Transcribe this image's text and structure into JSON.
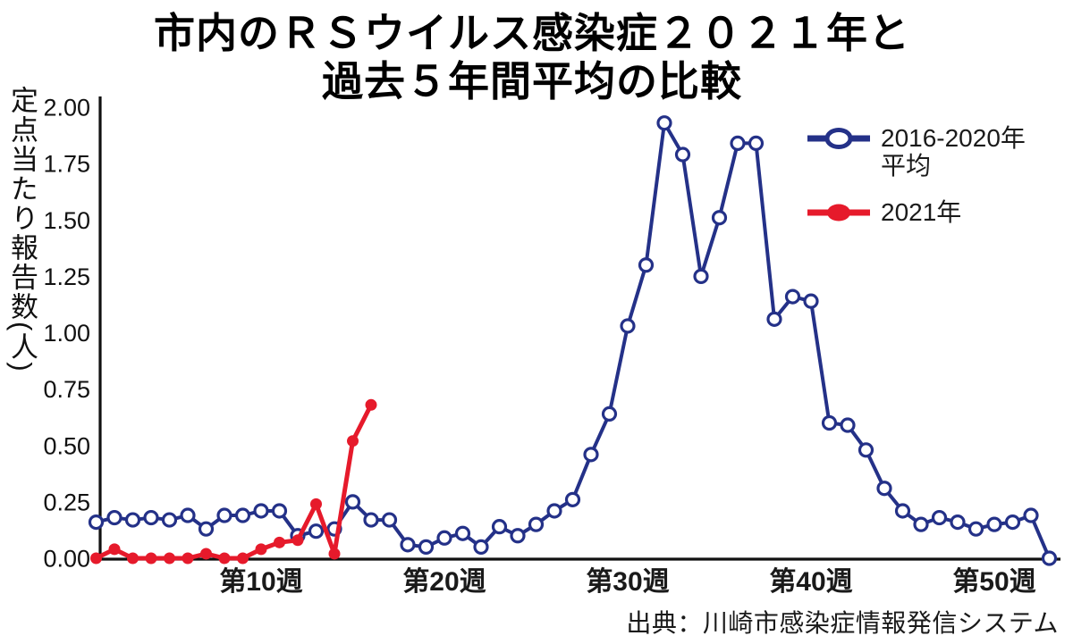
{
  "title": {
    "line1": "市内のＲＳウイルス感染症２０２１年と",
    "line2": "過去５年間平均の比較"
  },
  "y_axis": {
    "title": "定点当たり報告数(人)",
    "ticks": [
      "2.00",
      "1.75",
      "1.50",
      "1.25",
      "1.00",
      "0.75",
      "0.50",
      "0.25",
      "0.00"
    ]
  },
  "x_axis": {
    "ticks": [
      {
        "label": "第10週",
        "week": 10
      },
      {
        "label": "第20週",
        "week": 20
      },
      {
        "label": "第30週",
        "week": 30
      },
      {
        "label": "第40週",
        "week": 40
      },
      {
        "label": "第50週",
        "week": 50
      }
    ]
  },
  "legend": {
    "avg": {
      "line1": "2016-2020年",
      "line2": "平均"
    },
    "y2021": {
      "label": "2021年"
    }
  },
  "source": {
    "text": "出典：川崎市感染症情報発信システム"
  },
  "colors": {
    "avg_line": "#243188",
    "year2021_line": "#e61a2b",
    "axis": "#111111",
    "marker_fill_open": "#ffffff"
  },
  "chart_data": {
    "type": "line",
    "x_unit": "week",
    "x_range": [
      1,
      53
    ],
    "ylim": [
      0,
      2
    ],
    "ytick_step": 0.25,
    "grid": false,
    "legend_position": "top-right",
    "title": "市内のＲＳウイルス感染症２０２１年と過去５年間平均の比較",
    "ylabel": "定点当たり報告数(人)",
    "xlabel_ticks": [
      "第10週",
      "第20週",
      "第30週",
      "第40週",
      "第50週"
    ],
    "series": [
      {
        "name": "2016-2020年平均",
        "color": "#243188",
        "marker": "open-circle",
        "start_week": 1,
        "values": [
          0.16,
          0.18,
          0.17,
          0.18,
          0.17,
          0.19,
          0.13,
          0.19,
          0.19,
          0.21,
          0.21,
          0.1,
          0.12,
          0.13,
          0.25,
          0.17,
          0.17,
          0.06,
          0.05,
          0.09,
          0.11,
          0.05,
          0.14,
          0.1,
          0.15,
          0.21,
          0.26,
          0.46,
          0.64,
          1.03,
          1.3,
          1.93,
          1.79,
          1.25,
          1.51,
          1.84,
          1.84,
          1.06,
          1.16,
          1.14,
          0.6,
          0.59,
          0.48,
          0.31,
          0.21,
          0.15,
          0.18,
          0.16,
          0.13,
          0.15,
          0.16,
          0.19,
          0.0
        ]
      },
      {
        "name": "2021年",
        "color": "#e61a2b",
        "marker": "filled-circle",
        "start_week": 1,
        "values": [
          0.0,
          0.04,
          0.0,
          0.0,
          0.0,
          0.0,
          0.02,
          0.0,
          0.0,
          0.04,
          0.07,
          0.08,
          0.24,
          0.02,
          0.52,
          0.68
        ]
      }
    ]
  }
}
